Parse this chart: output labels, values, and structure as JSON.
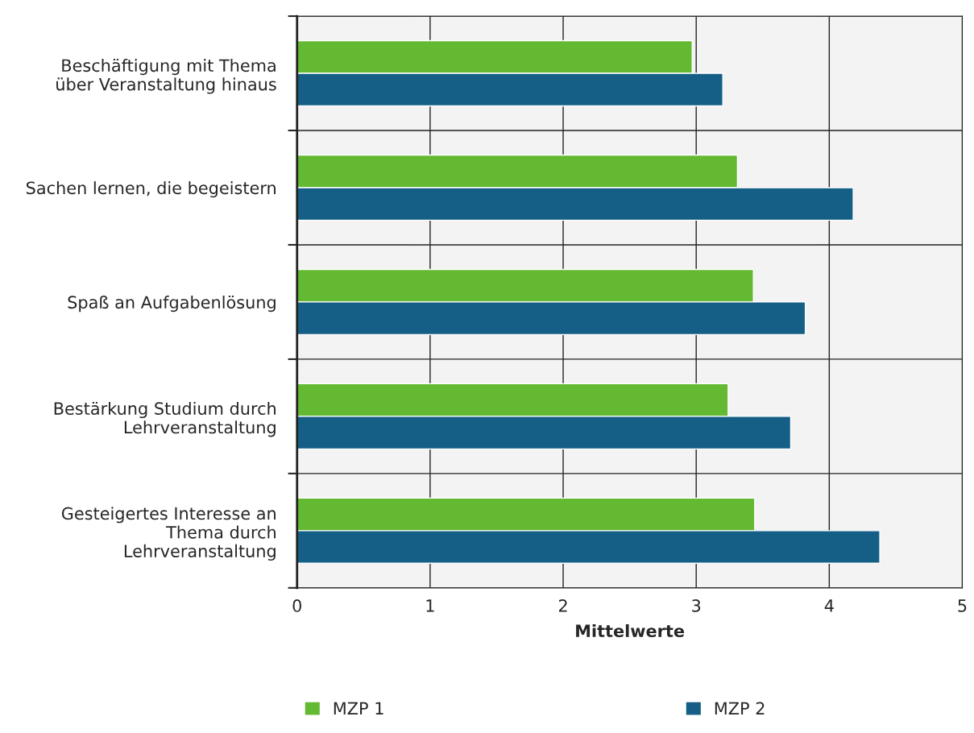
{
  "chart_data": {
    "type": "bar",
    "orientation": "horizontal",
    "xlabel": "Mittelwerte",
    "categories": [
      "Beschäftigung mit Thema\nüber Veranstaltung hinaus",
      "Sachen lernen, die begeistern",
      "Spaß an Aufgabenlösung",
      "Bestärkung Studium durch\nLehrveranstaltung",
      "Gesteigertes Interesse an\nThema durch\nLehrveranstaltung"
    ],
    "series": [
      {
        "name": "MZP 1",
        "color": "#63b932",
        "values": [
          2.97,
          3.31,
          3.43,
          3.24,
          3.44
        ]
      },
      {
        "name": "MZP 2",
        "color": "#155f86",
        "values": [
          3.2,
          4.18,
          3.82,
          3.71,
          4.38
        ]
      }
    ],
    "xlim": [
      0,
      5
    ],
    "xticks": [
      0,
      1,
      2,
      3,
      4,
      5
    ],
    "grid": true,
    "legend": "bottom"
  }
}
